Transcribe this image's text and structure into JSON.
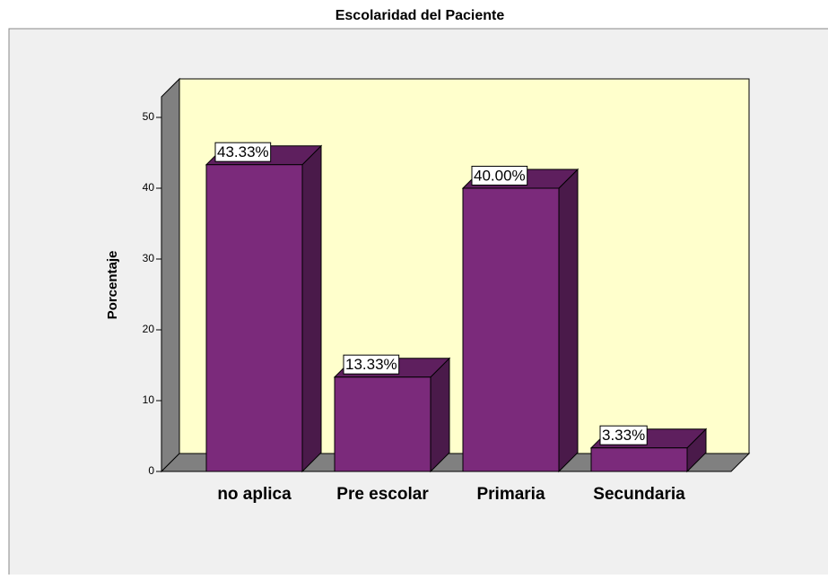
{
  "chart_data": {
    "type": "bar3d",
    "title": "Escolaridad del Paciente",
    "y_label": "Porcentaje",
    "categories": [
      "no aplica",
      "Pre escolar",
      "Primaria",
      "Secundaria"
    ],
    "values": [
      43.33,
      13.33,
      40.0,
      3.33
    ],
    "value_labels": [
      "43.33%",
      "13.33%",
      "40.00%",
      "3.33%"
    ],
    "color": "#7b2a7b",
    "ylim": [
      0,
      50
    ],
    "yticks": [
      0,
      10,
      20,
      30,
      40,
      50
    ]
  }
}
